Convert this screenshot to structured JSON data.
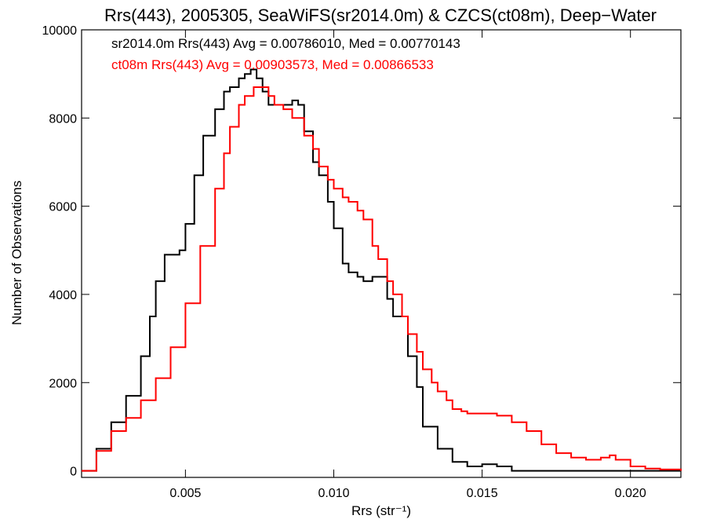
{
  "chart_data": {
    "type": "line",
    "title": "Rrs(443), 2005305, SeaWiFS(sr2014.0m) & CZCS(ct08m), Deep−Water",
    "xlabel": "Rrs (str⁻¹)",
    "ylabel": "Number of Observations",
    "xlim": [
      0.0015,
      0.0217
    ],
    "ylim": [
      -150,
      10000
    ],
    "xticks": [
      0.005,
      0.01,
      0.015,
      0.02
    ],
    "xtick_labels": [
      "0.005",
      "0.010",
      "0.015",
      "0.020"
    ],
    "yticks": [
      0,
      2000,
      4000,
      6000,
      8000,
      10000
    ],
    "ytick_labels": [
      "0",
      "2000",
      "4000",
      "6000",
      "8000",
      "10000"
    ],
    "grid": false,
    "step": true,
    "annotations": [
      {
        "text": "sr2014.0m Rrs(443) Avg = 0.00786010, Med = 0.00770143",
        "color": "#000000"
      },
      {
        "text": "ct08m Rrs(443) Avg = 0.00903573, Med = 0.00866533",
        "color": "#ff0000"
      }
    ],
    "series": [
      {
        "color": "#000000",
        "x": [
          0.0015,
          0.002,
          0.0025,
          0.003,
          0.0035,
          0.0038,
          0.004,
          0.0043,
          0.0045,
          0.0048,
          0.005,
          0.0053,
          0.0056,
          0.006,
          0.0063,
          0.0065,
          0.0068,
          0.007,
          0.0072,
          0.0074,
          0.0076,
          0.0078,
          0.008,
          0.0083,
          0.0086,
          0.0088,
          0.009,
          0.0093,
          0.0095,
          0.0098,
          0.01,
          0.0103,
          0.0105,
          0.0108,
          0.011,
          0.0113,
          0.0115,
          0.0118,
          0.012,
          0.0125,
          0.0128,
          0.013,
          0.0135,
          0.014,
          0.0145,
          0.015,
          0.0155,
          0.016,
          0.0165,
          0.017,
          0.018,
          0.019,
          0.02,
          0.0217
        ],
        "y": [
          0,
          500,
          1100,
          1700,
          2600,
          3500,
          4300,
          4900,
          4900,
          5000,
          5600,
          6700,
          7600,
          8200,
          8600,
          8700,
          8900,
          9000,
          9100,
          8900,
          8600,
          8300,
          8300,
          8300,
          8400,
          8300,
          7700,
          7000,
          6700,
          6100,
          5500,
          4700,
          4500,
          4400,
          4300,
          4400,
          4400,
          3900,
          3500,
          2600,
          1900,
          1000,
          500,
          200,
          100,
          150,
          100,
          0,
          0,
          0,
          0,
          0,
          0,
          0
        ]
      },
      {
        "color": "#ff0000",
        "x": [
          0.0015,
          0.002,
          0.0025,
          0.003,
          0.0035,
          0.004,
          0.0045,
          0.005,
          0.0055,
          0.006,
          0.0063,
          0.0065,
          0.0068,
          0.007,
          0.0073,
          0.0075,
          0.0078,
          0.008,
          0.0083,
          0.0086,
          0.009,
          0.0093,
          0.0095,
          0.0098,
          0.01,
          0.0103,
          0.0105,
          0.0108,
          0.011,
          0.0113,
          0.0115,
          0.0118,
          0.012,
          0.0123,
          0.0125,
          0.0128,
          0.013,
          0.0133,
          0.0135,
          0.0138,
          0.014,
          0.0143,
          0.0145,
          0.0148,
          0.015,
          0.0155,
          0.016,
          0.0165,
          0.017,
          0.0175,
          0.018,
          0.0185,
          0.019,
          0.0193,
          0.0195,
          0.02,
          0.0205,
          0.021,
          0.0217
        ],
        "y": [
          0,
          450,
          900,
          1200,
          1600,
          2100,
          2800,
          3800,
          5100,
          6400,
          7200,
          7800,
          8300,
          8500,
          8700,
          8700,
          8500,
          8300,
          8200,
          8000,
          7600,
          7300,
          6900,
          6600,
          6400,
          6200,
          6100,
          5900,
          5700,
          5100,
          4800,
          4300,
          4000,
          3500,
          3100,
          2700,
          2300,
          2000,
          1800,
          1600,
          1400,
          1350,
          1300,
          1300,
          1300,
          1250,
          1100,
          900,
          600,
          400,
          300,
          250,
          300,
          350,
          250,
          100,
          50,
          30,
          0
        ]
      }
    ]
  }
}
